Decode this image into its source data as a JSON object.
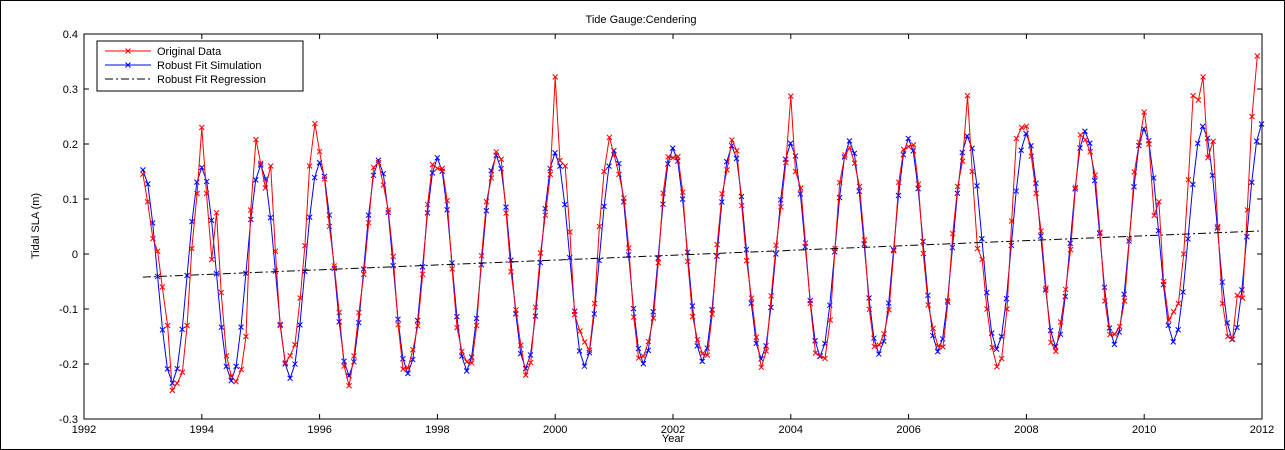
{
  "chart_data": {
    "type": "line",
    "title": "Tide Gauge:Cendering",
    "xlabel": "Year",
    "ylabel": "Tidal SLA (m)",
    "xlim": [
      1992,
      2012
    ],
    "ylim": [
      -0.3,
      0.4
    ],
    "xticks": [
      1992,
      1994,
      1996,
      1998,
      2000,
      2002,
      2004,
      2006,
      2008,
      2010,
      2012
    ],
    "yticks": [
      -0.3,
      -0.2,
      -0.1,
      0,
      0.1,
      0.2,
      0.3,
      0.4
    ],
    "ytick_labels": [
      "-0.3",
      "-0.2",
      "-0.1",
      "0",
      "0.1",
      "0.2",
      "0.3",
      "0.4"
    ],
    "grid": false,
    "legend_position": "top-left",
    "series": [
      {
        "name": "Original Data",
        "color": "#ff0000",
        "line_style": "solid",
        "marker": "x",
        "points": [
          [
            1993.0,
            0.145
          ],
          [
            1993.08,
            0.095
          ],
          [
            1993.17,
            0.028
          ],
          [
            1993.25,
            0.005
          ],
          [
            1993.33,
            -0.06
          ],
          [
            1993.42,
            -0.13
          ],
          [
            1993.5,
            -0.248
          ],
          [
            1993.58,
            -0.235
          ],
          [
            1993.67,
            -0.215
          ],
          [
            1993.75,
            -0.13
          ],
          [
            1993.83,
            0.01
          ],
          [
            1993.92,
            0.11
          ],
          [
            1994.0,
            0.23
          ],
          [
            1994.08,
            0.11
          ],
          [
            1994.17,
            -0.01
          ],
          [
            1994.25,
            0.075
          ],
          [
            1994.33,
            -0.07
          ],
          [
            1994.42,
            -0.185
          ],
          [
            1994.5,
            -0.222
          ],
          [
            1994.58,
            -0.232
          ],
          [
            1994.67,
            -0.21
          ],
          [
            1994.75,
            -0.15
          ],
          [
            1994.83,
            0.08
          ],
          [
            1994.92,
            0.208
          ],
          [
            1995.0,
            0.165
          ],
          [
            1995.08,
            0.12
          ],
          [
            1995.17,
            0.16
          ],
          [
            1995.25,
            0.005
          ],
          [
            1995.33,
            -0.13
          ],
          [
            1995.42,
            -0.198
          ],
          [
            1995.5,
            -0.185
          ],
          [
            1995.58,
            -0.165
          ],
          [
            1995.67,
            -0.08
          ],
          [
            1995.75,
            0.015
          ],
          [
            1995.83,
            0.16
          ],
          [
            1995.92,
            0.237
          ],
          [
            2000.0,
            0.322
          ],
          [
            2000.08,
            0.17
          ],
          [
            2000.17,
            0.16
          ],
          [
            2000.25,
            0.04
          ],
          [
            2000.33,
            -0.11
          ],
          [
            2000.42,
            -0.14
          ],
          [
            2000.5,
            -0.16
          ],
          [
            2000.58,
            -0.175
          ],
          [
            2000.67,
            -0.09
          ],
          [
            2000.75,
            0.05
          ],
          [
            2000.83,
            0.15
          ],
          [
            2000.92,
            0.212
          ],
          [
            2004.0,
            0.287
          ],
          [
            2004.08,
            0.15
          ],
          [
            2004.17,
            0.12
          ],
          [
            2004.25,
            0.02
          ],
          [
            2004.33,
            -0.09
          ],
          [
            2004.42,
            -0.18
          ],
          [
            2004.5,
            -0.185
          ],
          [
            2004.58,
            -0.19
          ],
          [
            2004.67,
            -0.12
          ],
          [
            2004.75,
            0.01
          ],
          [
            2004.83,
            0.13
          ],
          [
            2004.92,
            0.18
          ],
          [
            2007.0,
            0.288
          ],
          [
            2007.08,
            0.15
          ],
          [
            2007.17,
            0.01
          ],
          [
            2007.25,
            -0.01
          ],
          [
            2007.33,
            -0.1
          ],
          [
            2007.42,
            -0.17
          ],
          [
            2007.5,
            -0.205
          ],
          [
            2007.58,
            -0.19
          ],
          [
            2007.67,
            -0.1
          ],
          [
            2007.75,
            0.06
          ],
          [
            2007.83,
            0.21
          ],
          [
            2007.92,
            0.23
          ],
          [
            2010.0,
            0.258
          ],
          [
            2010.08,
            0.2
          ],
          [
            2010.17,
            0.07
          ],
          [
            2010.25,
            0.095
          ],
          [
            2010.33,
            -0.05
          ],
          [
            2010.42,
            -0.12
          ],
          [
            2010.5,
            -0.105
          ],
          [
            2010.58,
            -0.09
          ],
          [
            2010.67,
            0.0
          ],
          [
            2010.75,
            0.135
          ],
          [
            2010.83,
            0.288
          ],
          [
            2010.92,
            0.28
          ],
          [
            2011.0,
            0.322
          ],
          [
            2011.08,
            0.175
          ],
          [
            2011.17,
            0.205
          ],
          [
            2011.25,
            0.05
          ],
          [
            2011.33,
            -0.09
          ],
          [
            2011.42,
            -0.15
          ],
          [
            2011.5,
            -0.155
          ],
          [
            2011.58,
            -0.075
          ],
          [
            2011.67,
            -0.08
          ],
          [
            2011.75,
            0.08
          ],
          [
            2011.83,
            0.25
          ],
          [
            2011.92,
            0.36
          ]
        ]
      },
      {
        "name": "Robust Fit Simulation",
        "color": "#0000ff",
        "line_style": "solid",
        "marker": "x",
        "model": {
          "type": "seasonal_plus_trend",
          "x_range": [
            1993.0,
            2012.0
          ],
          "x_step": 0.0833,
          "trend_intercept_at_1993": -0.042,
          "trend_slope_per_year": 0.0044,
          "annual_amplitude": 0.195,
          "annual_phase_year_fraction": 0.0
        }
      },
      {
        "name": "Robust Fit Regression",
        "color": "#000000",
        "line_style": "dashdot",
        "marker": "none",
        "points": [
          [
            1993.0,
            -0.042
          ],
          [
            2012.0,
            0.042
          ]
        ]
      }
    ]
  }
}
